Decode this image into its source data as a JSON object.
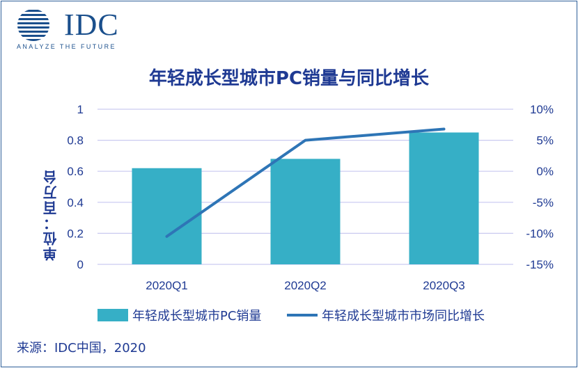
{
  "logo": {
    "word": "IDC",
    "tagline": "ANALYZE THE FUTURE"
  },
  "colors": {
    "bar": "#36afc6",
    "line": "#2e75b6",
    "grid": "#c9c9f0",
    "text": "#1f3a93"
  },
  "chart_data": {
    "type": "bar",
    "title": "年轻成长型城市PC销量与同比增长",
    "ylabel": "单位：百万台",
    "categories": [
      "2020Q1",
      "2020Q2",
      "2020Q3"
    ],
    "ylim": [
      0,
      1
    ],
    "y_ticks": [
      "0",
      "0.2",
      "0.4",
      "0.6",
      "0.8",
      "1"
    ],
    "y2lim": [
      -15,
      10
    ],
    "y2_ticks": [
      "-15%",
      "-10%",
      "-5%",
      "0%",
      "5%",
      "10%"
    ],
    "grid": true,
    "legend_position": "bottom",
    "series": [
      {
        "name": "年轻成长型城市PC销量",
        "kind": "bar",
        "axis": "left",
        "values": [
          0.62,
          0.68,
          0.85
        ]
      },
      {
        "name": "年轻成长型城市市场同比增长",
        "kind": "line",
        "axis": "right",
        "values": [
          -10.5,
          5.0,
          6.8
        ]
      }
    ]
  },
  "source": "来源：IDC中国，2020"
}
